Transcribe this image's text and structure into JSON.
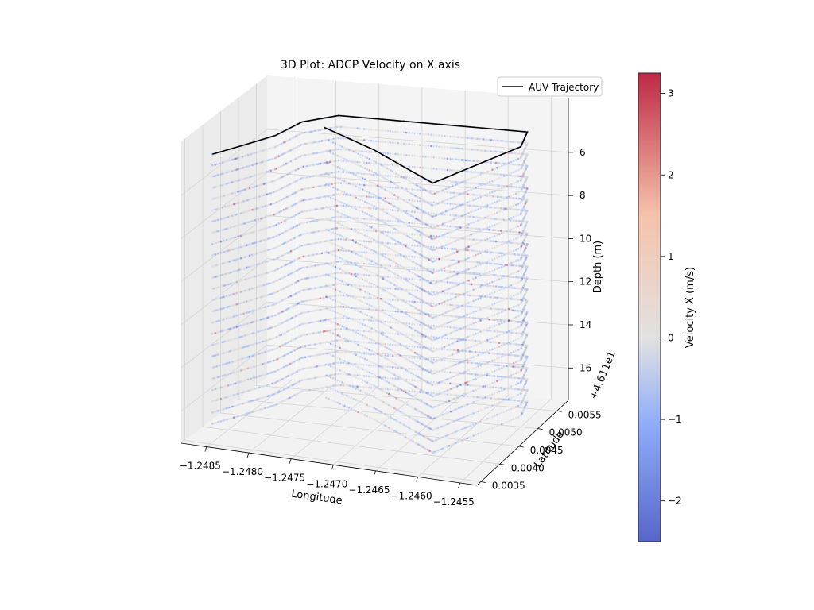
{
  "chart_data": {
    "type": "scatter",
    "projection": "3d",
    "title": "3D Plot: ADCP Velocity on X axis",
    "xlabel": "Longitude",
    "ylabel": "Latitude",
    "zlabel": "Depth (m)",
    "y_offset_label": "+4.611e1",
    "xlim": [
      -1.2488,
      -1.2453
    ],
    "ylim": [
      0.0034,
      0.0058
    ],
    "zlim": [
      17.5,
      3.5
    ],
    "z_inverted": true,
    "x_ticks": [
      -1.2485,
      -1.248,
      -1.2475,
      -1.247,
      -1.2465,
      -1.246,
      -1.2455
    ],
    "x_tick_labels": [
      "−1.2485",
      "−1.2480",
      "−1.2475",
      "−1.2470",
      "−1.2465",
      "−1.2460",
      "−1.2455"
    ],
    "y_ticks": [
      0.0035,
      0.004,
      0.0045,
      0.005,
      0.0055
    ],
    "y_tick_labels": [
      "0.0035",
      "0.0040",
      "0.0045",
      "0.0050",
      "0.0055"
    ],
    "z_ticks": [
      6,
      8,
      10,
      12,
      14,
      16
    ],
    "z_tick_labels": [
      "6",
      "8",
      "10",
      "12",
      "14",
      "16"
    ],
    "grid": true,
    "legend": {
      "position": "top-right",
      "entries": [
        {
          "label": "AUV Trajectory",
          "color": "#000000"
        }
      ]
    },
    "trajectory": {
      "name": "AUV Trajectory",
      "depth_m": 4.5,
      "path": [
        {
          "lon": -1.2486,
          "lat": 0.0038
        },
        {
          "lon": -1.2484,
          "lat": 0.0042
        },
        {
          "lon": -1.2482,
          "lat": 0.0046
        },
        {
          "lon": -1.2481,
          "lat": 0.0051
        },
        {
          "lon": -1.2478,
          "lat": 0.0054
        },
        {
          "lon": -1.2472,
          "lat": 0.0054
        },
        {
          "lon": -1.2465,
          "lat": 0.0054
        },
        {
          "lon": -1.246,
          "lat": 0.0054
        },
        {
          "lon": -1.2456,
          "lat": 0.0054
        },
        {
          "lon": -1.2455,
          "lat": 0.005
        },
        {
          "lon": -1.2458,
          "lat": 0.0043
        },
        {
          "lon": -1.246,
          "lat": 0.0038
        },
        {
          "lon": -1.2463,
          "lat": 0.004
        },
        {
          "lon": -1.247,
          "lat": 0.0045
        },
        {
          "lon": -1.2478,
          "lat": 0.005
        }
      ]
    },
    "scatter": {
      "variable": "Velocity X (m/s)",
      "depth_range_m": [
        4.5,
        17.0
      ],
      "velocity_range": [
        -2.5,
        3.25
      ],
      "typical_velocity_range": [
        -1.0,
        0.6
      ],
      "seed": 7
    },
    "colorbar": {
      "label": "Velocity X (m/s)",
      "colormap": "coolwarm",
      "vmin": -2.5,
      "vmax": 3.25,
      "ticks": [
        -2,
        -1,
        0,
        1,
        2,
        3
      ],
      "tick_labels": [
        "−2",
        "−1",
        "0",
        "1",
        "2",
        "3"
      ],
      "colors": {
        "low": "#3b4cc0",
        "mid": "#dddddd",
        "high": "#b40426"
      }
    }
  }
}
